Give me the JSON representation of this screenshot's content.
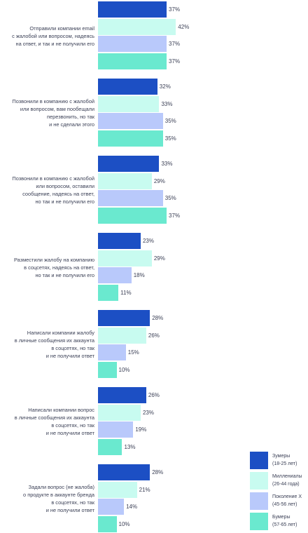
{
  "chart_data": {
    "type": "bar",
    "orientation": "horizontal",
    "categories": [
      [
        "Отправили компании email",
        "с жалобой или вопросом, надеясь",
        "на ответ, и так и не получили его"
      ],
      [
        "Позвонили в компанию с жалобой",
        "или вопросом, вам пообещали",
        "перезвонить, но так",
        "и не сделали этого"
      ],
      [
        "Позвонили в компанию с жалобой",
        "или вопросом, оставили",
        "сообщение, надеясь на ответ,",
        "но так и не получили его"
      ],
      [
        "Разместили жалобу на компанию",
        "в соцсетях, надеясь на ответ,",
        "но так и не получили его"
      ],
      [
        "Написали компании жалобу",
        "в личные сообщения их аккаунта",
        "в соцсетях, но так",
        "и не получили ответ"
      ],
      [
        "Написали компании вопрос",
        "в личные сообщения их аккаунта",
        "в соцсетях, но так",
        "и не получили ответ"
      ],
      [
        "Задали вопрос (не жалоба)",
        "о продукте в аккаунте бренда",
        "в соцсетях, но так",
        "и не получили ответ"
      ]
    ],
    "series": [
      {
        "name": [
          "Зумеры",
          "(18-25 лет)"
        ],
        "color": "#1c4fc4",
        "values": [
          37,
          32,
          33,
          23,
          28,
          26,
          28
        ]
      },
      {
        "name": [
          "Миллениалы",
          "(26-44 года)"
        ],
        "color": "#c8fbf0",
        "values": [
          42,
          33,
          29,
          29,
          26,
          23,
          21
        ]
      },
      {
        "name": [
          "Поколение X",
          "(45-56 лет)"
        ],
        "color": "#b9c9fb",
        "values": [
          37,
          35,
          35,
          18,
          15,
          19,
          14
        ]
      },
      {
        "name": [
          "Бумеры",
          "(57-65 лет)"
        ],
        "color": "#6ae9cf",
        "values": [
          37,
          35,
          37,
          11,
          10,
          13,
          10
        ]
      }
    ],
    "value_suffix": "%",
    "xlim": [
      0,
      50
    ],
    "grid": false,
    "legend_position": "bottom-right"
  }
}
